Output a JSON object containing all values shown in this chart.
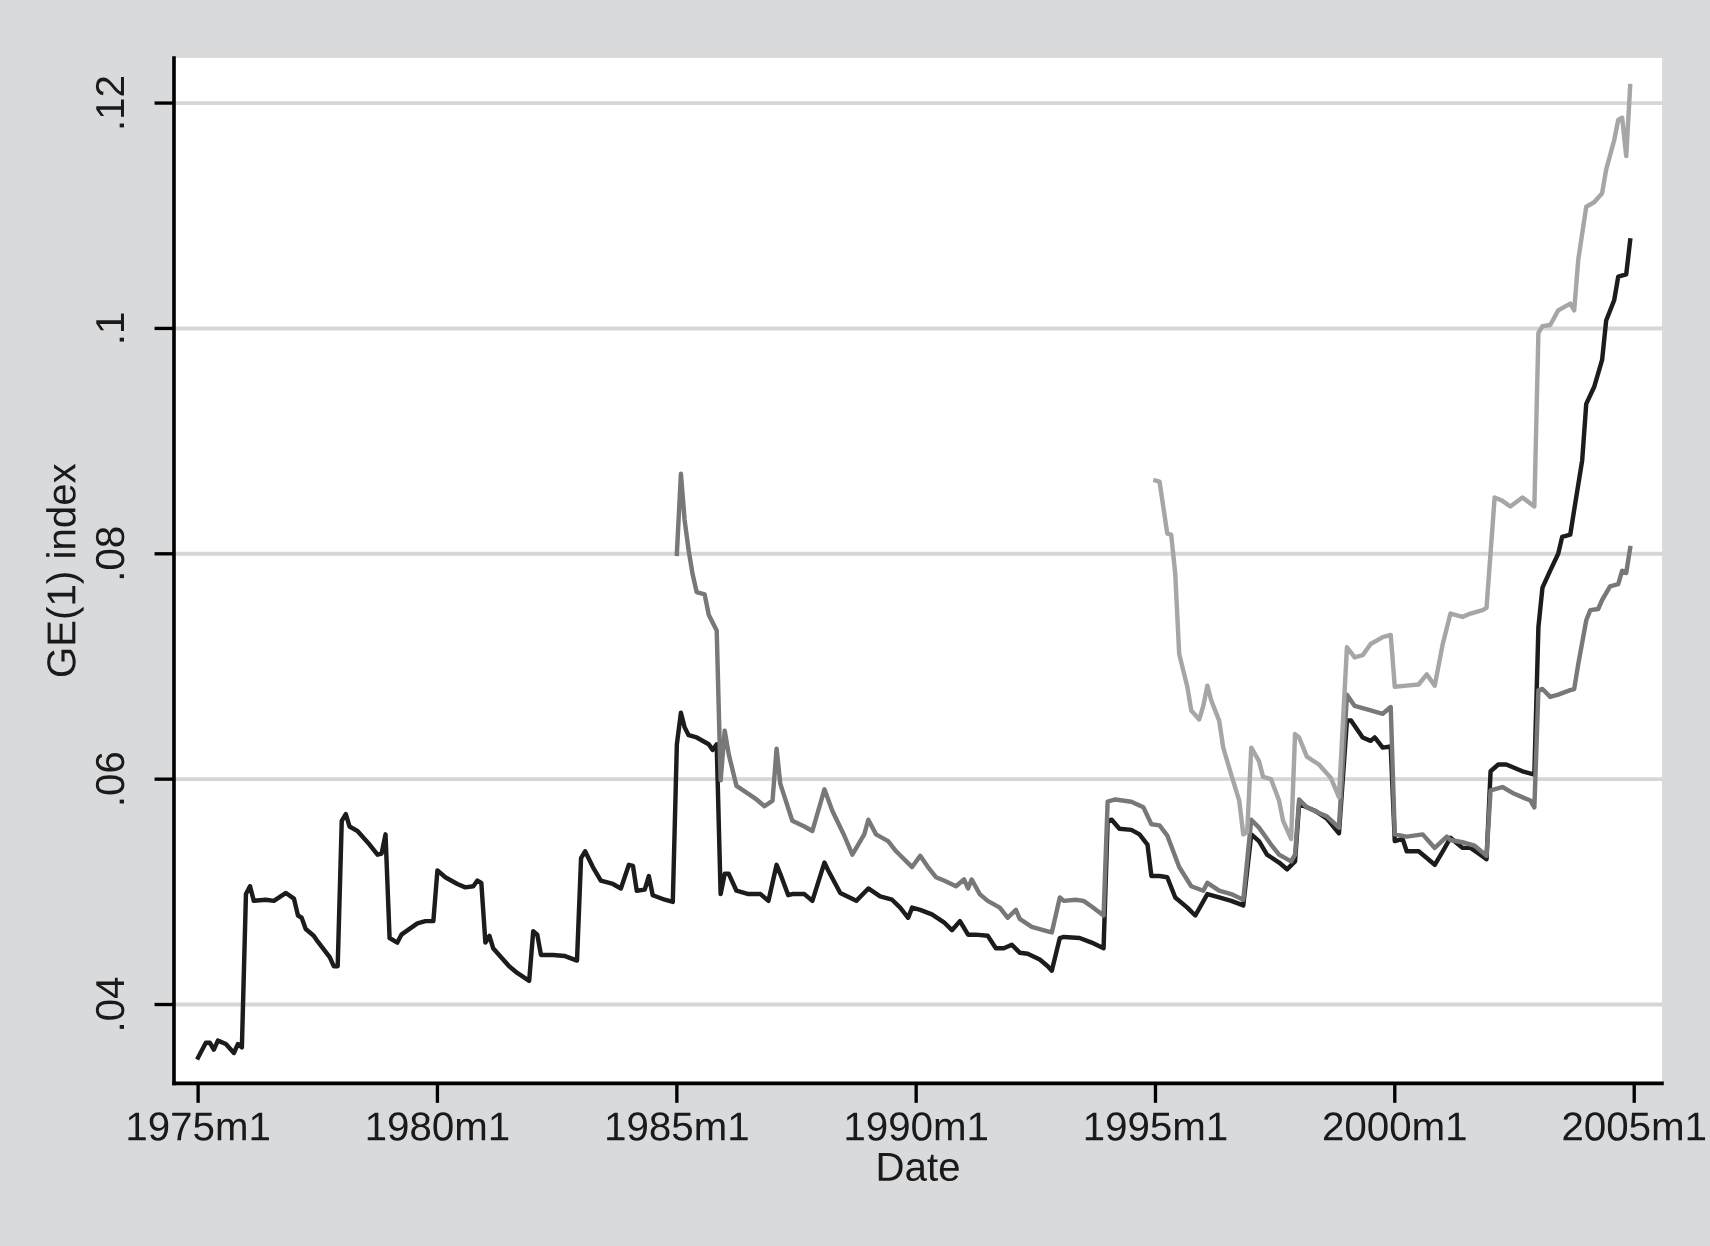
{
  "chart_data": {
    "type": "line",
    "xlabel": "Date",
    "ylabel": "GE(1) index",
    "xlim": [
      "1974-07",
      "2005-08"
    ],
    "ylim": [
      0.033,
      0.124
    ],
    "xticks": [
      {
        "value": "1975-01",
        "label": "1975m1"
      },
      {
        "value": "1980-01",
        "label": "1980m1"
      },
      {
        "value": "1985-01",
        "label": "1985m1"
      },
      {
        "value": "1990-01",
        "label": "1990m1"
      },
      {
        "value": "1995-01",
        "label": "1995m1"
      },
      {
        "value": "2000-01",
        "label": "2000m1"
      },
      {
        "value": "2005-01",
        "label": "2005m1"
      }
    ],
    "yticks": [
      {
        "value": 0.04,
        "label": ".04"
      },
      {
        "value": 0.06,
        "label": ".06"
      },
      {
        "value": 0.08,
        "label": ".08"
      },
      {
        "value": 0.1,
        "label": ".1"
      },
      {
        "value": 0.12,
        "label": ".12"
      }
    ],
    "grid": "y",
    "line_style": "solid",
    "series": [
      {
        "color": "#1c1c1c",
        "x": [
          "1975-01",
          "1975-03",
          "1975-04",
          "1975-05",
          "1975-06",
          "1975-08",
          "1975-10",
          "1975-11",
          "1975-12",
          "1976-01",
          "1976-02",
          "1976-03",
          "1976-06",
          "1976-08",
          "1976-11",
          "1977-01",
          "1977-02",
          "1977-03",
          "1977-04",
          "1977-06",
          "1977-07",
          "1977-10",
          "1977-11",
          "1977-12",
          "1978-01",
          "1978-02",
          "1978-03",
          "1978-05",
          "1978-08",
          "1978-10",
          "1978-11",
          "1978-12",
          "1979-01",
          "1979-03",
          "1979-04",
          "1979-08",
          "1979-10",
          "1979-12",
          "1980-01",
          "1980-03",
          "1980-06",
          "1980-08",
          "1980-10",
          "1980-11",
          "1980-12",
          "1981-01",
          "1981-02",
          "1981-03",
          "1981-05",
          "1981-07",
          "1981-09",
          "1981-12",
          "1982-01",
          "1982-02",
          "1982-03",
          "1982-06",
          "1982-09",
          "1982-12",
          "1983-01",
          "1983-02",
          "1983-04",
          "1983-06",
          "1983-09",
          "1983-11",
          "1984-01",
          "1984-02",
          "1984-03",
          "1984-05",
          "1984-06",
          "1984-07",
          "1984-10",
          "1984-12",
          "1985-01",
          "1985-02",
          "1985-03",
          "1985-04",
          "1985-06",
          "1985-09",
          "1985-10",
          "1985-11",
          "1985-12",
          "1986-01",
          "1986-02",
          "1986-04",
          "1986-07",
          "1986-10",
          "1986-12",
          "1987-02",
          "1987-03",
          "1987-05",
          "1987-06",
          "1987-09",
          "1987-11",
          "1988-02",
          "1988-03",
          "1988-06",
          "1988-10",
          "1989-01",
          "1989-04",
          "1989-07",
          "1989-09",
          "1989-11",
          "1989-12",
          "1990-02",
          "1990-05",
          "1990-08",
          "1990-10",
          "1990-12",
          "1991-02",
          "1991-04",
          "1991-07",
          "1991-09",
          "1991-11",
          "1992-01",
          "1992-03",
          "1992-05",
          "1992-08",
          "1992-10",
          "1992-11",
          "1993-01",
          "1993-02",
          "1993-06",
          "1993-09",
          "1993-12",
          "1994-01",
          "1994-02",
          "1994-04",
          "1994-07",
          "1994-09",
          "1994-11",
          "1994-12",
          "1995-02",
          "1995-04",
          "1995-06",
          "1995-09",
          "1995-11",
          "1996-02",
          "1996-05",
          "1996-08",
          "1996-11",
          "1997-01",
          "1997-03",
          "1997-05",
          "1997-08",
          "1997-10",
          "1997-12",
          "1998-01",
          "1998-03",
          "1998-05",
          "1998-08",
          "1998-11",
          "1999-01",
          "1999-02",
          "1999-05",
          "1999-07",
          "1999-08",
          "1999-10",
          "1999-12",
          "2000-01",
          "2000-03",
          "2000-04",
          "2000-07",
          "2000-09",
          "2000-11",
          "2001-01",
          "2001-03",
          "2001-05",
          "2001-06",
          "2001-08",
          "2001-10",
          "2001-12",
          "2002-01",
          "2002-03",
          "2002-05",
          "2002-09",
          "2002-12",
          "2003-01",
          "2003-02",
          "2003-04",
          "2003-06",
          "2003-07",
          "2003-09",
          "2003-10",
          "2003-12",
          "2004-01",
          "2004-03",
          "2004-05",
          "2004-06",
          "2004-08",
          "2004-09",
          "2004-11",
          "2004-12"
        ],
        "values": [
          0.0353,
          0.0366,
          0.0366,
          0.036,
          0.0368,
          0.0365,
          0.0357,
          0.0365,
          0.0362,
          0.0498,
          0.0505,
          0.0492,
          0.0493,
          0.0492,
          0.0499,
          0.0494,
          0.0479,
          0.0477,
          0.0467,
          0.0461,
          0.0456,
          0.0442,
          0.0434,
          0.0434,
          0.0563,
          0.0569,
          0.0558,
          0.0554,
          0.0542,
          0.0533,
          0.0534,
          0.0551,
          0.0459,
          0.0455,
          0.0462,
          0.0472,
          0.0474,
          0.0474,
          0.0519,
          0.0513,
          0.0507,
          0.0504,
          0.0505,
          0.051,
          0.0508,
          0.0455,
          0.0461,
          0.045,
          0.0442,
          0.0434,
          0.0428,
          0.0421,
          0.0465,
          0.0462,
          0.0444,
          0.0444,
          0.0443,
          0.0439,
          0.053,
          0.0536,
          0.0522,
          0.051,
          0.0507,
          0.0503,
          0.0524,
          0.0523,
          0.0501,
          0.0502,
          0.0514,
          0.0497,
          0.0493,
          0.0491,
          0.0631,
          0.0659,
          0.0646,
          0.0639,
          0.0637,
          0.0631,
          0.0626,
          0.0631,
          0.0498,
          0.0516,
          0.0516,
          0.0501,
          0.0498,
          0.0498,
          0.0492,
          0.0524,
          0.0516,
          0.0497,
          0.0498,
          0.0498,
          0.0492,
          0.0526,
          0.0519,
          0.0499,
          0.0492,
          0.0503,
          0.0496,
          0.0493,
          0.0486,
          0.0477,
          0.0486,
          0.0484,
          0.048,
          0.0473,
          0.0466,
          0.0474,
          0.0462,
          0.0462,
          0.0461,
          0.045,
          0.045,
          0.0453,
          0.0446,
          0.0445,
          0.044,
          0.0434,
          0.043,
          0.0459,
          0.046,
          0.0459,
          0.0455,
          0.045,
          0.0563,
          0.0564,
          0.0556,
          0.0555,
          0.0551,
          0.0542,
          0.0514,
          0.0514,
          0.0513,
          0.0495,
          0.0486,
          0.0479,
          0.0498,
          0.0495,
          0.0492,
          0.0488,
          0.0551,
          0.0545,
          0.0533,
          0.0526,
          0.052,
          0.0527,
          0.0578,
          0.0575,
          0.0572,
          0.0565,
          0.0552,
          0.0652,
          0.0652,
          0.0637,
          0.0634,
          0.0637,
          0.0628,
          0.0629,
          0.0545,
          0.0547,
          0.0536,
          0.0536,
          0.053,
          0.0524,
          0.0536,
          0.0548,
          0.0542,
          0.0539,
          0.0539,
          0.0534,
          0.0529,
          0.0607,
          0.0613,
          0.0613,
          0.0607,
          0.0604,
          0.0735,
          0.077,
          0.0785,
          0.08,
          0.0815,
          0.0817,
          0.0839,
          0.0883,
          0.0933,
          0.0948,
          0.0972,
          0.1007,
          0.1025,
          0.1046,
          0.1048,
          0.1078
        ]
      },
      {
        "color": "#787878",
        "x": [
          "1985-01",
          "1985-02",
          "1985-03",
          "1985-04",
          "1985-05",
          "1985-06",
          "1985-08",
          "1985-09",
          "1985-11",
          "1985-12",
          "1986-01",
          "1986-02",
          "1986-04",
          "1986-07",
          "1986-09",
          "1986-11",
          "1987-01",
          "1987-02",
          "1987-03",
          "1987-06",
          "1987-09",
          "1987-11",
          "1988-02",
          "1988-04",
          "1988-07",
          "1988-09",
          "1988-12",
          "1989-01",
          "1989-03",
          "1989-06",
          "1989-08",
          "1989-12",
          "1990-02",
          "1990-04",
          "1990-06",
          "1990-08",
          "1990-11",
          "1991-01",
          "1991-02",
          "1991-03",
          "1991-05",
          "1991-07",
          "1991-10",
          "1991-12",
          "1992-02",
          "1992-03",
          "1992-06",
          "1992-10",
          "1992-11",
          "1993-01",
          "1993-02",
          "1993-05",
          "1993-07",
          "1993-09",
          "1993-12",
          "1994-01",
          "1994-03",
          "1994-07",
          "1994-10",
          "1994-12",
          "1995-02",
          "1995-04",
          "1995-07",
          "1995-10",
          "1996-01",
          "1996-02",
          "1996-05",
          "1996-08",
          "1996-11",
          "1997-01",
          "1997-03",
          "1997-06",
          "1997-08",
          "1997-11",
          "1997-12",
          "1998-01",
          "1998-03",
          "1998-06",
          "1998-08",
          "1998-11",
          "1999-01",
          "1999-03",
          "1999-07",
          "1999-10",
          "1999-12",
          "2000-01",
          "2000-04",
          "2000-08",
          "2000-11",
          "2001-02",
          "2001-03",
          "2001-06",
          "2001-09",
          "2001-12",
          "2002-01",
          "2002-04",
          "2002-07",
          "2002-11",
          "2002-12",
          "2003-01",
          "2003-02",
          "2003-04",
          "2003-06",
          "2003-09",
          "2003-10",
          "2003-11",
          "2004-01",
          "2004-02",
          "2004-04",
          "2004-05",
          "2004-07",
          "2004-09",
          "2004-10",
          "2004-11",
          "2004-12"
        ],
        "values": [
          0.08,
          0.0871,
          0.083,
          0.0803,
          0.0782,
          0.0766,
          0.0764,
          0.0746,
          0.0732,
          0.0599,
          0.0643,
          0.0622,
          0.0594,
          0.0587,
          0.0582,
          0.0576,
          0.0581,
          0.0627,
          0.0596,
          0.0563,
          0.0558,
          0.0554,
          0.0591,
          0.0572,
          0.055,
          0.0533,
          0.0551,
          0.0564,
          0.0551,
          0.0545,
          0.0536,
          0.0522,
          0.0532,
          0.0522,
          0.0513,
          0.051,
          0.0505,
          0.0511,
          0.0503,
          0.0511,
          0.0498,
          0.0492,
          0.0486,
          0.0477,
          0.0484,
          0.0476,
          0.0469,
          0.0465,
          0.0464,
          0.0495,
          0.0492,
          0.0493,
          0.0492,
          0.0487,
          0.0479,
          0.058,
          0.0582,
          0.058,
          0.0575,
          0.056,
          0.0559,
          0.055,
          0.0522,
          0.0505,
          0.0501,
          0.0508,
          0.0501,
          0.0498,
          0.0493,
          0.0564,
          0.0557,
          0.0542,
          0.0533,
          0.0527,
          0.0533,
          0.0582,
          0.0575,
          0.057,
          0.0567,
          0.0557,
          0.0675,
          0.0665,
          0.0661,
          0.0658,
          0.0664,
          0.0551,
          0.0549,
          0.0551,
          0.0539,
          0.0549,
          0.0546,
          0.0544,
          0.0541,
          0.0532,
          0.059,
          0.0593,
          0.0587,
          0.0581,
          0.0575,
          0.0679,
          0.068,
          0.0673,
          0.0675,
          0.0679,
          0.068,
          0.0702,
          0.0741,
          0.075,
          0.0751,
          0.0759,
          0.0771,
          0.0773,
          0.0785,
          0.0783,
          0.0805
        ]
      },
      {
        "color": "#a6a6a6",
        "x": [
          "1995-01",
          "1995-02",
          "1995-04",
          "1995-05",
          "1995-06",
          "1995-07",
          "1995-09",
          "1995-10",
          "1995-12",
          "1996-01",
          "1996-02",
          "1996-03",
          "1996-05",
          "1996-06",
          "1996-08",
          "1996-10",
          "1996-11",
          "1996-12",
          "1997-01",
          "1997-03",
          "1997-04",
          "1997-06",
          "1997-08",
          "1997-09",
          "1997-11",
          "1997-12",
          "1998-01",
          "1998-03",
          "1998-06",
          "1998-09",
          "1998-11",
          "1999-01",
          "1999-03",
          "1999-05",
          "1999-07",
          "1999-10",
          "1999-12",
          "2000-01",
          "2000-04",
          "2000-07",
          "2000-09",
          "2000-11",
          "2001-01",
          "2001-03",
          "2001-06",
          "2001-08",
          "2001-11",
          "2001-12",
          "2002-02",
          "2002-04",
          "2002-06",
          "2002-09",
          "2002-12",
          "2003-01",
          "2003-02",
          "2003-04",
          "2003-06",
          "2003-09",
          "2003-10",
          "2003-11",
          "2004-01",
          "2004-03",
          "2004-05",
          "2004-06",
          "2004-08",
          "2004-09",
          "2004-10",
          "2004-11",
          "2004-12"
        ],
        "values": [
          0.0865,
          0.0864,
          0.0818,
          0.0817,
          0.0782,
          0.0711,
          0.0682,
          0.0661,
          0.0653,
          0.0665,
          0.0683,
          0.067,
          0.0652,
          0.0628,
          0.0604,
          0.0581,
          0.0551,
          0.0553,
          0.0628,
          0.0616,
          0.0602,
          0.06,
          0.0581,
          0.0563,
          0.0547,
          0.064,
          0.0637,
          0.062,
          0.0613,
          0.0601,
          0.0584,
          0.0717,
          0.0708,
          0.071,
          0.072,
          0.0726,
          0.0728,
          0.0682,
          0.0683,
          0.0684,
          0.0693,
          0.0683,
          0.072,
          0.0747,
          0.0744,
          0.0747,
          0.075,
          0.0752,
          0.085,
          0.0847,
          0.0842,
          0.085,
          0.0842,
          0.0996,
          0.1002,
          0.1003,
          0.1016,
          0.1022,
          0.1016,
          0.1061,
          0.1108,
          0.1112,
          0.112,
          0.1141,
          0.1167,
          0.1185,
          0.1187,
          0.1153,
          0.1215
        ]
      }
    ]
  }
}
